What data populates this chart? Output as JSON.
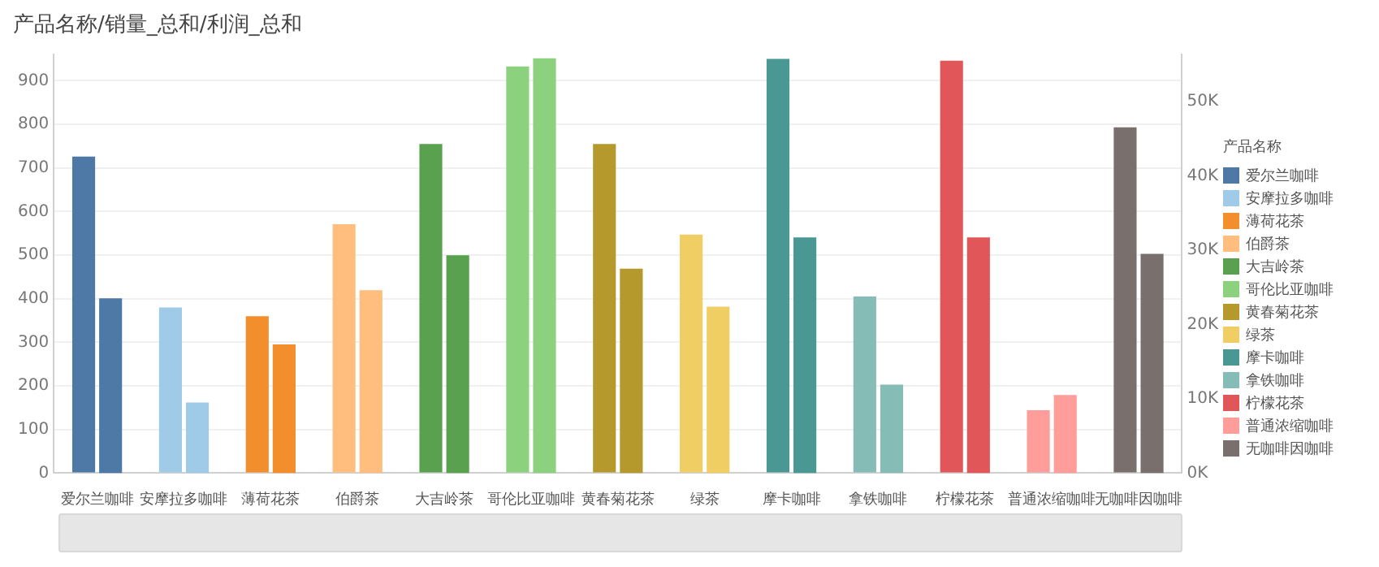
{
  "chart_data": {
    "type": "bar",
    "title": "产品名称/销量_总和/利润_总和",
    "legend_title": "产品名称",
    "categories": [
      "爱尔兰咖啡",
      "安摩拉多咖啡",
      "薄荷花茶",
      "伯爵茶",
      "大吉岭茶",
      "哥伦比亚咖啡",
      "黄春菊花茶",
      "绿茶",
      "摩卡咖啡",
      "拿铁咖啡",
      "柠檬花茶",
      "普通浓缩咖啡",
      "无咖啡因咖啡"
    ],
    "series": [
      {
        "axis": "y",
        "colors": [
          "#4e79a7",
          "#a0cbe8",
          "#f28e2b",
          "#ffbe7d",
          "#59a14f",
          "#8cd17d",
          "#b6992d",
          "#f1ce63",
          "#499894",
          "#86bcb6",
          "#e15759",
          "#ff9d9a",
          "#79706e"
        ],
        "values": [
          726,
          380,
          360,
          571,
          755,
          933,
          755,
          547,
          950,
          405,
          946,
          144,
          793
        ]
      },
      {
        "axis": "y2",
        "colors": [
          "#4e79a7",
          "#a0cbe8",
          "#f28e2b",
          "#ffbe7d",
          "#59a14f",
          "#8cd17d",
          "#b6992d",
          "#f1ce63",
          "#499894",
          "#86bcb6",
          "#e15759",
          "#ff9d9a",
          "#79706e"
        ],
        "values": [
          23500,
          9500,
          17300,
          24600,
          29300,
          55800,
          27500,
          22400,
          31700,
          11900,
          31700,
          10500,
          29500
        ]
      }
    ],
    "ylim": [
      0,
      960
    ],
    "yticks": [
      0,
      100,
      200,
      300,
      400,
      500,
      600,
      700,
      800,
      900
    ],
    "y2lim": [
      0,
      56300
    ],
    "y2ticks": [
      {
        "value": 0,
        "label": "0K"
      },
      {
        "value": 10000,
        "label": "10K"
      },
      {
        "value": 20000,
        "label": "20K"
      },
      {
        "value": 30000,
        "label": "30K"
      },
      {
        "value": 40000,
        "label": "40K"
      },
      {
        "value": 50000,
        "label": "50K"
      }
    ],
    "grid": "y"
  }
}
